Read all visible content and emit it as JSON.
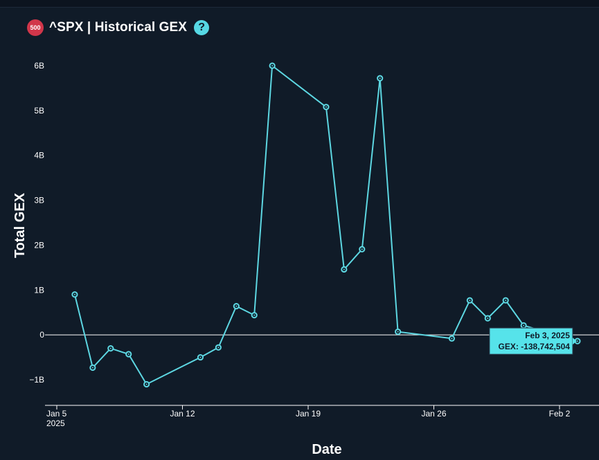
{
  "header": {
    "badge_text": "500",
    "title": "^SPX | Historical GEX",
    "help_icon": "question-mark-icon"
  },
  "colors": {
    "background": "#101b28",
    "line": "#5dd7e2",
    "tooltip_bg": "#56e3ea",
    "badge": "#d1364a"
  },
  "chart_data": {
    "type": "line",
    "title": "^SPX | Historical GEX",
    "xlabel": "Date",
    "ylabel": "Total GEX",
    "ylim": [
      -1600000000,
      6300000000
    ],
    "xlim": [
      "2025-01-04",
      "2025-02-03"
    ],
    "y_ticks": [
      {
        "value": 6000000000,
        "label": "6B"
      },
      {
        "value": 5000000000,
        "label": "5B"
      },
      {
        "value": 4000000000,
        "label": "4B"
      },
      {
        "value": 3000000000,
        "label": "3B"
      },
      {
        "value": 2000000000,
        "label": "2B"
      },
      {
        "value": 1000000000,
        "label": "1B"
      },
      {
        "value": 0,
        "label": "0"
      },
      {
        "value": -1000000000,
        "label": "−1B"
      }
    ],
    "x_ticks": [
      {
        "date": "2025-01-05",
        "label": "Jan 5",
        "label2": "2025"
      },
      {
        "date": "2025-01-12",
        "label": "Jan 12",
        "label2": ""
      },
      {
        "date": "2025-01-19",
        "label": "Jan 19",
        "label2": ""
      },
      {
        "date": "2025-01-26",
        "label": "Jan 26",
        "label2": ""
      },
      {
        "date": "2025-02-02",
        "label": "Feb 2",
        "label2": ""
      }
    ],
    "grid": false,
    "series": [
      {
        "points": [
          {
            "x": "2025-01-06",
            "y": 900000000
          },
          {
            "x": "2025-01-07",
            "y": -730000000
          },
          {
            "x": "2025-01-08",
            "y": -300000000
          },
          {
            "x": "2025-01-09",
            "y": -430000000
          },
          {
            "x": "2025-01-10",
            "y": -1100000000
          },
          {
            "x": "2025-01-13",
            "y": -500000000
          },
          {
            "x": "2025-01-14",
            "y": -280000000
          },
          {
            "x": "2025-01-15",
            "y": 640000000
          },
          {
            "x": "2025-01-16",
            "y": 440000000
          },
          {
            "x": "2025-01-17",
            "y": 6000000000
          },
          {
            "x": "2025-01-20",
            "y": 5080000000
          },
          {
            "x": "2025-01-21",
            "y": 1460000000
          },
          {
            "x": "2025-01-22",
            "y": 1910000000
          },
          {
            "x": "2025-01-23",
            "y": 5720000000
          },
          {
            "x": "2025-01-24",
            "y": 70000000
          },
          {
            "x": "2025-01-27",
            "y": -80000000
          },
          {
            "x": "2025-01-28",
            "y": 770000000
          },
          {
            "x": "2025-01-29",
            "y": 370000000
          },
          {
            "x": "2025-01-30",
            "y": 770000000
          },
          {
            "x": "2025-01-31",
            "y": 210000000
          },
          {
            "x": "2025-02-03",
            "y": -138742504
          }
        ]
      }
    ],
    "tooltip": {
      "x": "2025-02-03",
      "y": -138742504,
      "line1": "Feb 3, 2025",
      "line2": "GEX: -138,742,504"
    }
  }
}
